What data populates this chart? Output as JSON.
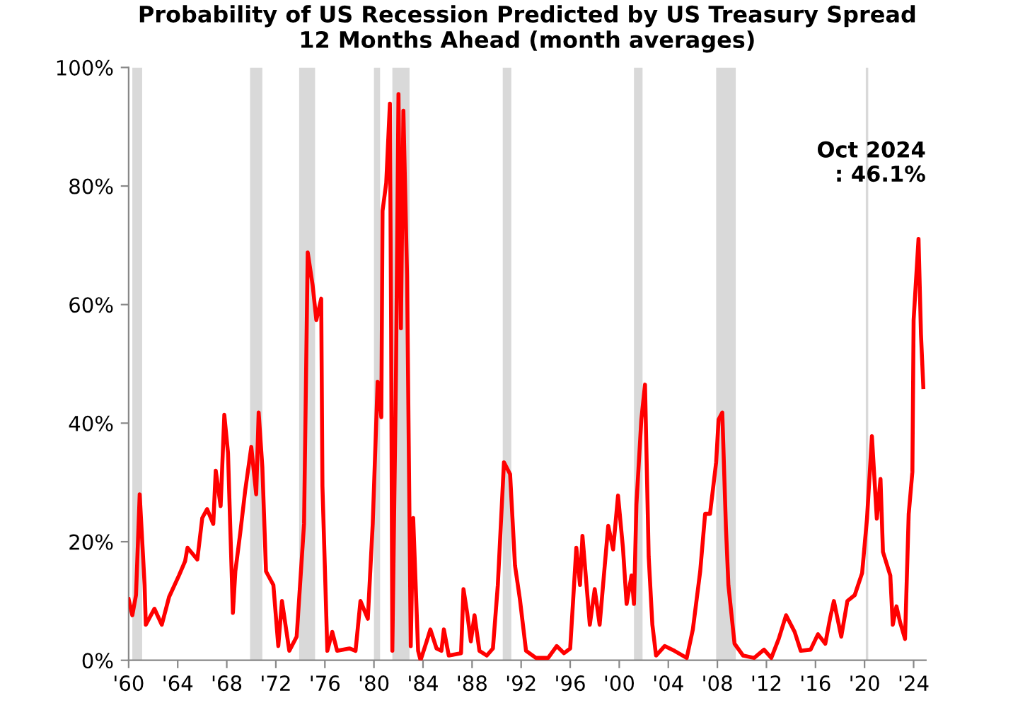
{
  "chart_data": {
    "type": "line",
    "title": "Probability of US Recession Predicted by US Treasury Spread\n12 Months Ahead (month averages)",
    "x": [
      1960.0,
      1960.3,
      1960.6,
      1960.9,
      1961.3,
      1961.4,
      1962.1,
      1962.7,
      1963.3,
      1964.1,
      1964.6,
      1964.8,
      1965.6,
      1966.0,
      1966.4,
      1966.9,
      1967.1,
      1967.5,
      1967.8,
      1968.1,
      1968.5,
      1968.7,
      1969.1,
      1969.5,
      1970.0,
      1970.4,
      1970.6,
      1970.9,
      1971.2,
      1971.8,
      1972.2,
      1972.5,
      1973.1,
      1973.7,
      1974.3,
      1974.6,
      1975.0,
      1975.3,
      1975.7,
      1975.8,
      1976.2,
      1976.6,
      1977.0,
      1978.0,
      1978.5,
      1978.9,
      1979.5,
      1979.9,
      1980.3,
      1980.6,
      1980.7,
      1981.0,
      1981.3,
      1981.4,
      1981.5,
      1981.8,
      1982.0,
      1982.2,
      1982.4,
      1982.7,
      1983.0,
      1983.2,
      1983.6,
      1983.8,
      1984.3,
      1984.6,
      1985.1,
      1985.5,
      1985.7,
      1986.1,
      1987.1,
      1987.3,
      1987.6,
      1987.9,
      1988.2,
      1988.6,
      1989.2,
      1989.7,
      1990.1,
      1990.6,
      1991.1,
      1991.5,
      1991.9,
      1992.4,
      1993.2,
      1994.2,
      1994.9,
      1995.5,
      1996.0,
      1996.5,
      1996.8,
      1997.0,
      1997.6,
      1998.0,
      1998.4,
      1999.1,
      1999.5,
      1999.9,
      2000.3,
      2000.6,
      2001.0,
      2001.2,
      2001.4,
      2001.8,
      2002.1,
      2002.4,
      2002.7,
      2003.0,
      2003.7,
      2004.5,
      2005.5,
      2006.0,
      2006.6,
      2007.0,
      2007.4,
      2007.9,
      2008.1,
      2008.4,
      2008.7,
      2008.9,
      2009.4,
      2010.1,
      2011.0,
      2011.8,
      2012.4,
      2013.0,
      2013.6,
      2014.3,
      2014.8,
      2015.6,
      2016.2,
      2016.8,
      2017.2,
      2017.5,
      2018.1,
      2018.6,
      2019.2,
      2019.8,
      2020.2,
      2020.6,
      2021.0,
      2021.3,
      2021.5,
      2022.1,
      2022.3,
      2022.6,
      2022.9,
      2023.3,
      2023.6,
      2023.9,
      2024.0,
      2024.4,
      2024.6,
      2024.79
    ],
    "series": [
      {
        "color": "#ff0000",
        "values": [
          10.3,
          7.6,
          11,
          28,
          12.7,
          6,
          8.7,
          6,
          10.7,
          14.3,
          16.7,
          19,
          17,
          24,
          25.5,
          23,
          32,
          26,
          41.4,
          35,
          8,
          15,
          21.5,
          28.6,
          36,
          28,
          41.8,
          32.6,
          15,
          12.7,
          2.4,
          10,
          1.6,
          4,
          23,
          68.8,
          63.3,
          57.4,
          61,
          29.4,
          1.6,
          4.8,
          1.6,
          2,
          1.6,
          10,
          7,
          23,
          47,
          41,
          75.8,
          80.5,
          93.9,
          56,
          1.6,
          49,
          95.5,
          56,
          92.7,
          64.9,
          2.4,
          24,
          1.6,
          0,
          3.2,
          5.2,
          2,
          1.6,
          5.2,
          0.8,
          1.2,
          12,
          8,
          3.2,
          7.6,
          1.6,
          0.8,
          2,
          12.7,
          33.4,
          31.4,
          16,
          10.3,
          1.6,
          0.4,
          0.4,
          2.4,
          1.2,
          2,
          19,
          12.7,
          21,
          6,
          12,
          6,
          22.7,
          18.7,
          27.8,
          19,
          9.5,
          14.3,
          9.5,
          26.3,
          40.6,
          46.5,
          17.5,
          6,
          0.8,
          2.4,
          1.6,
          0.4,
          5.2,
          15,
          24.7,
          24.7,
          33.4,
          40.6,
          41.8,
          22.3,
          12.7,
          2.8,
          0.8,
          0.4,
          1.8,
          0.4,
          3.6,
          7.6,
          4.8,
          1.6,
          1.8,
          4.4,
          2.8,
          7.2,
          10,
          4,
          10,
          11,
          14.7,
          23.9,
          37.8,
          23.9,
          30.6,
          18.3,
          14.3,
          6,
          9.1,
          6.4,
          3.6,
          24.7,
          31.8,
          57.4,
          71.1,
          55,
          46.1
        ]
      }
    ],
    "xlim": [
      1960,
      2025
    ],
    "xticks": [
      {
        "value": 1960,
        "label": "'60"
      },
      {
        "value": 1964,
        "label": "'64"
      },
      {
        "value": 1968,
        "label": "'68"
      },
      {
        "value": 1972,
        "label": "'72"
      },
      {
        "value": 1976,
        "label": "'76"
      },
      {
        "value": 1980,
        "label": "'80"
      },
      {
        "value": 1984,
        "label": "'84"
      },
      {
        "value": 1988,
        "label": "'88"
      },
      {
        "value": 1992,
        "label": "'92"
      },
      {
        "value": 1996,
        "label": "'96"
      },
      {
        "value": 2000,
        "label": "'00"
      },
      {
        "value": 2004,
        "label": "'04"
      },
      {
        "value": 2008,
        "label": "'08"
      },
      {
        "value": 2012,
        "label": "'12"
      },
      {
        "value": 2016,
        "label": "'16"
      },
      {
        "value": 2020,
        "label": "'20"
      },
      {
        "value": 2024,
        "label": "'24"
      }
    ],
    "ylim": [
      0,
      100
    ],
    "yticks": [
      {
        "value": 0,
        "label": "0%"
      },
      {
        "value": 20,
        "label": "20%"
      },
      {
        "value": 40,
        "label": "40%"
      },
      {
        "value": 60,
        "label": "60%"
      },
      {
        "value": 80,
        "label": "80%"
      },
      {
        "value": 100,
        "label": "100%"
      }
    ],
    "bands": [
      {
        "axis": "x",
        "from": 1960.3,
        "to": 1961.1,
        "color": "#d9d9d9"
      },
      {
        "axis": "x",
        "from": 1969.9,
        "to": 1970.9,
        "color": "#d9d9d9"
      },
      {
        "axis": "x",
        "from": 1973.9,
        "to": 1975.2,
        "color": "#d9d9d9"
      },
      {
        "axis": "x",
        "from": 1980.0,
        "to": 1980.5,
        "color": "#d9d9d9"
      },
      {
        "axis": "x",
        "from": 1981.5,
        "to": 1982.9,
        "color": "#d9d9d9"
      },
      {
        "axis": "x",
        "from": 1990.5,
        "to": 1991.2,
        "color": "#d9d9d9"
      },
      {
        "axis": "x",
        "from": 2001.2,
        "to": 2001.9,
        "color": "#d9d9d9"
      },
      {
        "axis": "x",
        "from": 2007.9,
        "to": 2009.5,
        "color": "#d9d9d9"
      },
      {
        "axis": "x",
        "from": 2020.1,
        "to": 2020.3,
        "color": "#d9d9d9"
      }
    ],
    "annotations": [
      "Oct 2024\n: 46.1%"
    ],
    "grid": false
  }
}
